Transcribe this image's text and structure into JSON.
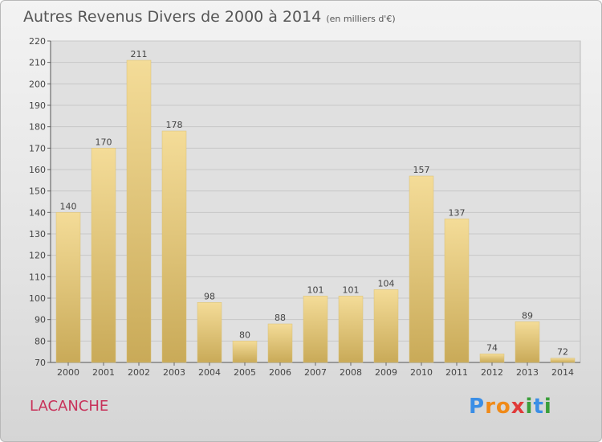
{
  "chart_data": {
    "type": "bar",
    "title": "Autres Revenus Divers de 2000 à 2014",
    "subtitle": "(en milliers d'€)",
    "categories": [
      "2000",
      "2001",
      "2002",
      "2003",
      "2004",
      "2005",
      "2006",
      "2007",
      "2008",
      "2009",
      "2010",
      "2011",
      "2012",
      "2013",
      "2014"
    ],
    "values": [
      140,
      170,
      211,
      178,
      98,
      80,
      88,
      101,
      101,
      104,
      157,
      137,
      74,
      89,
      72
    ],
    "ylim": [
      70,
      220
    ],
    "yticks": [
      70,
      80,
      90,
      100,
      110,
      120,
      130,
      140,
      150,
      160,
      170,
      180,
      190,
      200,
      210,
      220
    ],
    "grid": true,
    "bar_color": "#e9cc7e"
  },
  "location": "LACANCHE",
  "logo": {
    "letters": [
      "P",
      "r",
      "o",
      "x",
      "i",
      "t",
      "i"
    ],
    "colors": [
      "#3a8ee6",
      "#f08a18",
      "#f08a18",
      "#e03a3a",
      "#3a9e3a",
      "#3a8ee6",
      "#3a9e3a"
    ]
  }
}
